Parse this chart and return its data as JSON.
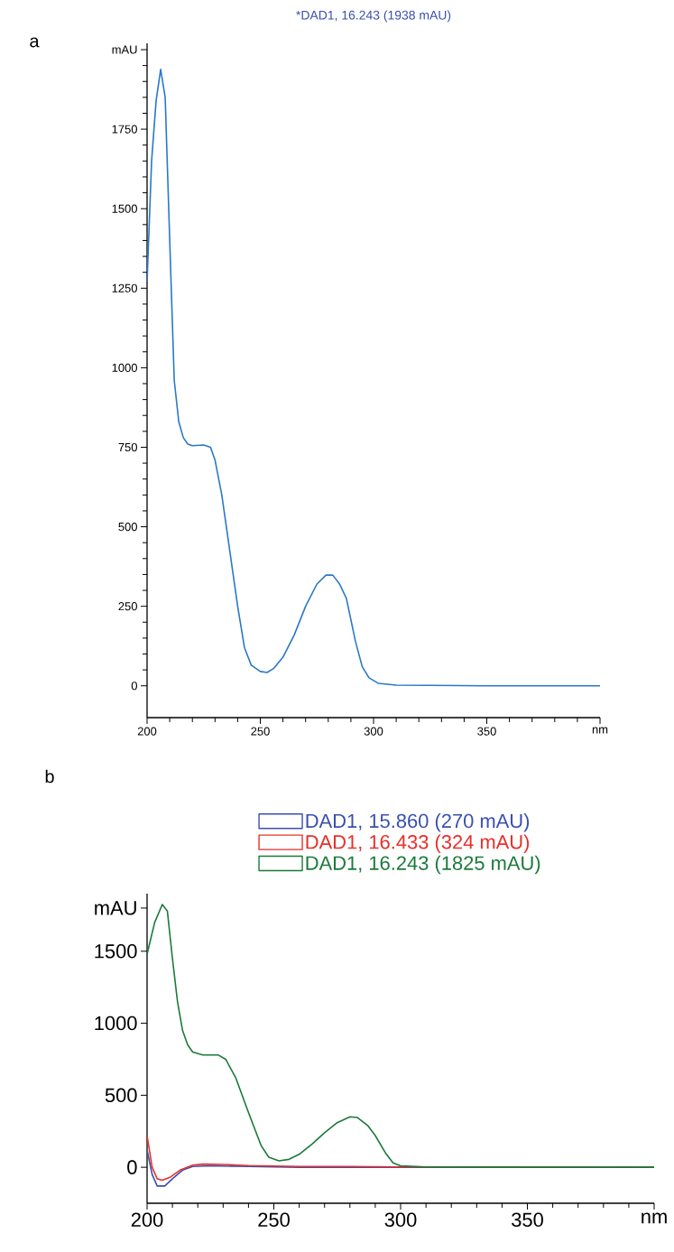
{
  "chart_data": [
    {
      "type": "line",
      "title": "*DAD1, 16.243 (1938 mAU)",
      "annotations": [
        "a"
      ],
      "xlim": [
        200,
        400
      ],
      "xticks": [
        200,
        250,
        300,
        350,
        {
          "value": 400,
          "label": "nm"
        }
      ],
      "ylim": [
        -100,
        2020
      ],
      "yticks": [
        0,
        250,
        500,
        750,
        1000,
        1250,
        1500,
        1750,
        {
          "value": 2000,
          "label": "mAU"
        }
      ],
      "series": [
        {
          "color": "#2a78c8",
          "x": [
            200,
            202,
            204,
            206,
            208,
            210,
            212,
            214,
            216,
            218,
            220,
            225,
            228,
            230,
            233,
            236,
            240,
            243,
            246,
            250,
            253,
            256,
            260,
            265,
            270,
            275,
            279,
            282,
            285,
            288,
            292,
            295,
            298,
            302,
            310,
            350,
            400
          ],
          "values": [
            1270,
            1650,
            1840,
            1938,
            1850,
            1400,
            960,
            830,
            780,
            760,
            755,
            757,
            750,
            710,
            600,
            450,
            250,
            120,
            65,
            45,
            42,
            55,
            90,
            160,
            250,
            320,
            348,
            348,
            320,
            275,
            140,
            60,
            25,
            8,
            2,
            0,
            0
          ]
        }
      ]
    },
    {
      "type": "line",
      "annotations": [
        "b"
      ],
      "legend": "top",
      "xlim": [
        200,
        400
      ],
      "xticks": [
        200,
        250,
        300,
        350,
        {
          "value": 400,
          "label": "nm"
        }
      ],
      "ylim": [
        -250,
        1900
      ],
      "yticks": [
        0,
        500,
        1000,
        1500,
        {
          "value": 1800,
          "label": "mAU"
        }
      ],
      "series": [
        {
          "name": "DAD1, 15.860 (270 mAU)",
          "color": "#3a4fb0",
          "x": [
            200,
            202,
            204,
            207,
            210,
            214,
            218,
            225,
            240,
            260,
            300,
            400
          ],
          "values": [
            120,
            -50,
            -130,
            -130,
            -80,
            -20,
            5,
            10,
            5,
            0,
            0,
            0
          ]
        },
        {
          "name": "DAD1, 16.433 (324 mAU)",
          "color": "#e8302a",
          "x": [
            200,
            202,
            204,
            206,
            209,
            213,
            218,
            222,
            230,
            240,
            260,
            280,
            300,
            400
          ],
          "values": [
            220,
            0,
            -80,
            -90,
            -70,
            -20,
            15,
            22,
            20,
            12,
            5,
            5,
            2,
            0
          ]
        },
        {
          "name": "DAD1, 16.243 (1825 mAU)",
          "color": "#1a7a3a",
          "x": [
            200,
            203,
            206,
            208,
            210,
            212,
            214,
            216,
            218,
            222,
            228,
            231,
            235,
            240,
            245,
            248,
            252,
            256,
            260,
            265,
            270,
            275,
            280,
            283,
            287,
            290,
            294,
            297,
            300,
            310,
            350,
            400
          ],
          "values": [
            1480,
            1700,
            1825,
            1780,
            1450,
            1150,
            950,
            850,
            800,
            780,
            780,
            750,
            620,
            380,
            150,
            70,
            45,
            55,
            90,
            160,
            240,
            310,
            350,
            345,
            290,
            220,
            100,
            30,
            10,
            2,
            0,
            0
          ]
        }
      ]
    }
  ]
}
